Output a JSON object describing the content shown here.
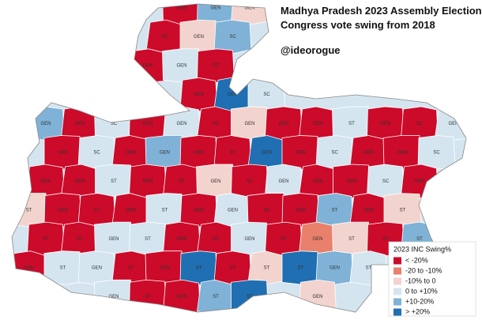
{
  "title": "Madhya Pradesh 2023 Assembly Elections",
  "subtitle": "Congress vote swing from 2018",
  "handle": "@ideorogue",
  "legend": {
    "title": "2023 INC Swing%",
    "entries": [
      {
        "label": "< -20%",
        "color": "#cc0a2a"
      },
      {
        "label": "-20 to -10%",
        "color": "#e8806c"
      },
      {
        "label": "-10% to 0",
        "color": "#f3d3cd"
      },
      {
        "label": "0 to +10%",
        "color": "#d4e5f0"
      },
      {
        "label": "+10-20%",
        "color": "#7fb2d6"
      },
      {
        "label": "> +20%",
        "color": "#1f6fb2"
      }
    ]
  },
  "constituencies": [
    {
      "label": "GEN",
      "swing": 0
    },
    {
      "label": "GEN",
      "swing": 4
    },
    {
      "label": "GEN",
      "swing": 2
    },
    {
      "label": "SC",
      "swing": 0
    },
    {
      "label": "GEN",
      "swing": 2
    },
    {
      "label": "SC",
      "swing": 4
    },
    {
      "label": "GEN",
      "swing": 0
    },
    {
      "label": "GEN",
      "swing": 3
    },
    {
      "label": "SC",
      "swing": 0
    },
    {
      "label": "GEN",
      "swing": 0
    },
    {
      "label": "GEN",
      "swing": 5
    },
    {
      "label": "SC",
      "swing": 3
    },
    {
      "label": "GEN",
      "swing": 4
    },
    {
      "label": "GEN",
      "swing": 0
    },
    {
      "label": "SC",
      "swing": 3
    },
    {
      "label": "GEN",
      "swing": 0
    },
    {
      "label": "GEN",
      "swing": 3
    },
    {
      "label": "SC",
      "swing": 0
    },
    {
      "label": "GEN",
      "swing": 2
    },
    {
      "label": "GEN",
      "swing": 0
    },
    {
      "label": "GEN",
      "swing": 0
    },
    {
      "label": "ST",
      "swing": 3
    },
    {
      "label": "GEN",
      "swing": 0
    },
    {
      "label": "SC",
      "swing": 0
    },
    {
      "label": "GEN",
      "swing": 3
    },
    {
      "label": "GEN",
      "swing": 0
    },
    {
      "label": "SC",
      "swing": 3
    },
    {
      "label": "GEN",
      "swing": 0
    },
    {
      "label": "GEN",
      "swing": 4
    },
    {
      "label": "GEN",
      "swing": 0
    },
    {
      "label": "ST",
      "swing": 0
    },
    {
      "label": "GEN",
      "swing": 5
    },
    {
      "label": "GEN",
      "swing": 0
    },
    {
      "label": "SC",
      "swing": 3
    },
    {
      "label": "GEN",
      "swing": 0
    },
    {
      "label": "GEN",
      "swing": 0
    },
    {
      "label": "SC",
      "swing": 3
    },
    {
      "label": "GEN",
      "swing": 0
    },
    {
      "label": "GEN",
      "swing": 0
    },
    {
      "label": "ST",
      "swing": 3
    },
    {
      "label": "GEN",
      "swing": 0
    },
    {
      "label": "ST",
      "swing": 0
    },
    {
      "label": "GEN",
      "swing": 2
    },
    {
      "label": "SC",
      "swing": 0
    },
    {
      "label": "GEN",
      "swing": 3
    },
    {
      "label": "GEN",
      "swing": 0
    },
    {
      "label": "GEN",
      "swing": 0
    },
    {
      "label": "SC",
      "swing": 3
    },
    {
      "label": "GEN",
      "swing": 0
    },
    {
      "label": "ST",
      "swing": 2
    },
    {
      "label": "GEN",
      "swing": 0
    },
    {
      "label": "ST",
      "swing": 0
    },
    {
      "label": "GEN",
      "swing": 0
    },
    {
      "label": "ST",
      "swing": 3
    },
    {
      "label": "GEN",
      "swing": 0
    },
    {
      "label": "GEN",
      "swing": 3
    },
    {
      "label": "SC",
      "swing": 0
    },
    {
      "label": "GEN",
      "swing": 0
    },
    {
      "label": "ST",
      "swing": 4
    },
    {
      "label": "GEN",
      "swing": 0
    },
    {
      "label": "ST",
      "swing": 2
    },
    {
      "label": "ST",
      "swing": 0
    },
    {
      "label": "ST",
      "swing": 0
    },
    {
      "label": "GEN",
      "swing": 3
    },
    {
      "label": "ST",
      "swing": 3
    },
    {
      "label": "GEN",
      "swing": 0
    },
    {
      "label": "SC",
      "swing": 0
    },
    {
      "label": "GEN",
      "swing": 3
    },
    {
      "label": "ST",
      "swing": 0
    },
    {
      "label": "GEN",
      "swing": 1
    },
    {
      "label": "ST",
      "swing": 2
    },
    {
      "label": "ST",
      "swing": 0
    },
    {
      "label": "ST",
      "swing": 4
    },
    {
      "label": "GEN",
      "swing": 0
    },
    {
      "label": "ST",
      "swing": 3
    },
    {
      "label": "GEN",
      "swing": 3
    },
    {
      "label": "ST",
      "swing": 0
    },
    {
      "label": "GEN",
      "swing": 0
    },
    {
      "label": "ST",
      "swing": 5
    },
    {
      "label": "ST",
      "swing": 0
    },
    {
      "label": "ST",
      "swing": 2
    },
    {
      "label": "ST",
      "swing": 5
    },
    {
      "label": "GEN",
      "swing": 4
    },
    {
      "label": "ST",
      "swing": 3
    },
    {
      "label": "GEN",
      "swing": 3
    },
    {
      "label": "ST",
      "swing": 0
    },
    {
      "label": "GEN",
      "swing": 0
    },
    {
      "label": "ST",
      "swing": 4
    },
    {
      "label": "ST",
      "swing": 5
    },
    {
      "label": "GEN",
      "swing": 2
    }
  ]
}
